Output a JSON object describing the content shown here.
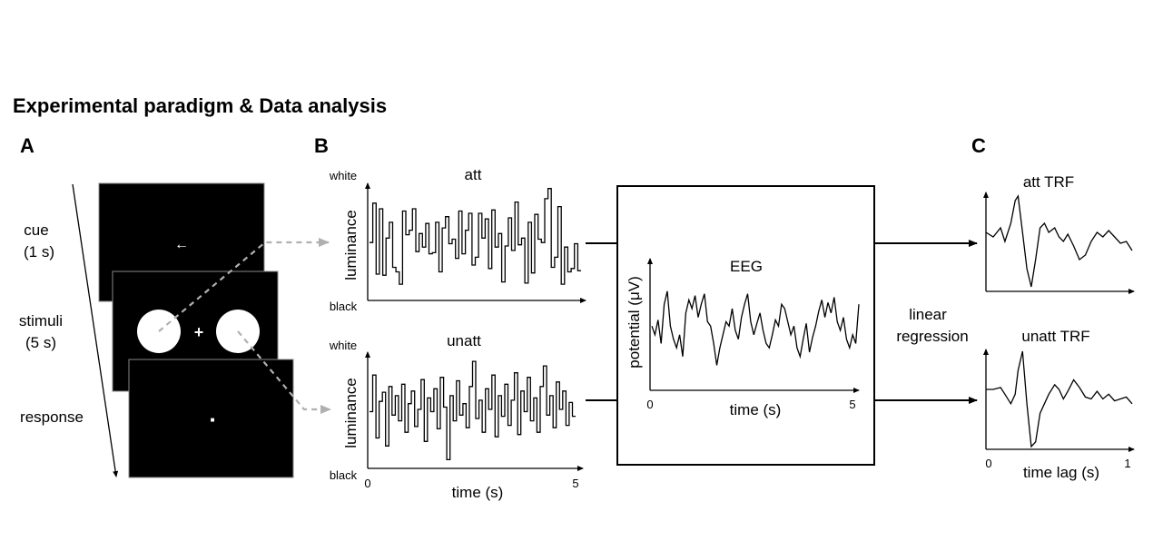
{
  "title": "Experimental paradigm & Data analysis",
  "panel_a": {
    "letter": "A",
    "phase_cue_line1": "cue",
    "phase_cue_line2": "(1 s)",
    "phase_stimuli_line1": "stimuli",
    "phase_stimuli_line2": "(5 s)",
    "phase_response": "response",
    "cue_symbol": "←",
    "fixation_symbol": "+",
    "response_symbol": "■"
  },
  "panel_b": {
    "letter": "B",
    "att_title": "att",
    "unatt_title": "unatt",
    "white_label": "white",
    "black_label": "black",
    "ylabel": "luminance",
    "xlabel": "time (s)",
    "x_start": "0",
    "x_end": "5",
    "eeg_title": "EEG",
    "eeg_ylabel": "potential (μV)",
    "eeg_xlabel": "time (s)",
    "eeg_x_start": "0",
    "eeg_x_end": "5",
    "method_line1": "linear",
    "method_line2": "regression"
  },
  "panel_c": {
    "letter": "C",
    "att_title": "att TRF",
    "unatt_title": "unatt TRF",
    "xlabel": "time lag (s)",
    "x_start": "0",
    "x_end": "1"
  },
  "colors": {
    "screen": "#000000",
    "dashed_arrow": "#b0b0b0",
    "stimulus": "#ffffff"
  },
  "chart_data": [
    {
      "type": "line",
      "title": "att",
      "ylabel": "luminance",
      "xlabel": "",
      "x_range": [
        0,
        5
      ],
      "y_range": [
        "black",
        "white"
      ],
      "series": [
        {
          "values": [
            0.49,
            0.84,
            0.21,
            0.79,
            0.2,
            0.53,
            0.67,
            0.27,
            0.23,
            0.12,
            0.77,
            0.56,
            0.6,
            0.79,
            0.41,
            0.57,
            0.45,
            0.66,
            0.39,
            0.4,
            0.67,
            0.23,
            0.62,
            0.72,
            0.48,
            0.52,
            0.35,
            0.77,
            0.39,
            0.6,
            0.75,
            0.29,
            0.36,
            0.75,
            0.53,
            0.7,
            0.26,
            0.78,
            0.45,
            0.57,
            0.14,
            0.46,
            0.71,
            0.42,
            0.85,
            0.47,
            0.53,
            0.13,
            0.67,
            0.22,
            0.74,
            0.52,
            0.49,
            0.88,
            0.97,
            0.27,
            0.36,
            0.81,
            0.12,
            0.45,
            0.23,
            0.26,
            0.48,
            0.24
          ]
        }
      ]
    },
    {
      "type": "line",
      "title": "unatt",
      "ylabel": "luminance",
      "xlabel": "time (s)",
      "x_range": [
        0,
        5
      ],
      "y_range": [
        "black",
        "white"
      ],
      "series": [
        {
          "values": [
            0.48,
            0.8,
            0.25,
            0.57,
            0.65,
            0.18,
            0.7,
            0.45,
            0.62,
            0.4,
            0.72,
            0.3,
            0.55,
            0.66,
            0.35,
            0.5,
            0.76,
            0.22,
            0.6,
            0.48,
            0.68,
            0.33,
            0.78,
            0.52,
            0.06,
            0.62,
            0.4,
            0.75,
            0.45,
            0.55,
            0.34,
            0.7,
            0.92,
            0.42,
            0.58,
            0.3,
            0.68,
            0.5,
            0.8,
            0.26,
            0.62,
            0.44,
            0.72,
            0.36,
            0.58,
            0.82,
            0.28,
            0.66,
            0.48,
            0.78,
            0.4,
            0.6,
            0.3,
            0.7,
            0.88,
            0.45,
            0.62,
            0.34,
            0.74,
            0.5,
            0.66,
            0.36,
            0.56,
            0.44
          ]
        }
      ]
    },
    {
      "type": "line",
      "title": "EEG",
      "ylabel": "potential (μV)",
      "xlabel": "time (s)",
      "x_range": [
        0,
        5
      ],
      "series": [
        {
          "values": [
            0.55,
            0.45,
            0.62,
            0.35,
            0.8,
            0.95,
            0.55,
            0.4,
            0.3,
            0.45,
            0.2,
            0.7,
            0.85,
            0.75,
            0.9,
            0.65,
            0.8,
            0.92,
            0.6,
            0.55,
            0.35,
            0.1,
            0.3,
            0.45,
            0.6,
            0.55,
            0.75,
            0.5,
            0.4,
            0.65,
            0.8,
            0.92,
            0.6,
            0.45,
            0.58,
            0.7,
            0.5,
            0.35,
            0.3,
            0.45,
            0.62,
            0.55,
            0.8,
            0.75,
            0.6,
            0.45,
            0.55,
            0.3,
            0.2,
            0.4,
            0.58,
            0.25,
            0.42,
            0.55,
            0.72,
            0.85,
            0.65,
            0.82,
            0.7,
            0.88,
            0.6,
            0.5,
            0.65,
            0.4,
            0.3,
            0.45,
            0.35,
            0.8
          ]
        }
      ]
    },
    {
      "type": "line",
      "title": "att TRF",
      "xlabel": "time lag (s)",
      "x_range": [
        0,
        1
      ],
      "series": [
        {
          "x": [
            0,
            0.05,
            0.1,
            0.13,
            0.17,
            0.2,
            0.22,
            0.25,
            0.28,
            0.31,
            0.34,
            0.37,
            0.4,
            0.43,
            0.47,
            0.5,
            0.53,
            0.56,
            0.6,
            0.64,
            0.68,
            0.72,
            0.76,
            0.8,
            0.84,
            0.88,
            0.92,
            0.96,
            1.0
          ],
          "values": [
            0.6,
            0.55,
            0.65,
            0.5,
            0.7,
            0.95,
            1.0,
            0.6,
            0.2,
            0.0,
            0.3,
            0.65,
            0.7,
            0.6,
            0.65,
            0.55,
            0.5,
            0.58,
            0.45,
            0.3,
            0.35,
            0.5,
            0.6,
            0.55,
            0.62,
            0.55,
            0.48,
            0.5,
            0.4
          ]
        }
      ]
    },
    {
      "type": "line",
      "title": "unatt TRF",
      "xlabel": "time lag (s)",
      "x_range": [
        0,
        1
      ],
      "series": [
        {
          "x": [
            0,
            0.05,
            0.1,
            0.13,
            0.17,
            0.2,
            0.22,
            0.25,
            0.28,
            0.31,
            0.34,
            0.37,
            0.4,
            0.43,
            0.47,
            0.5,
            0.53,
            0.56,
            0.6,
            0.64,
            0.68,
            0.72,
            0.76,
            0.8,
            0.84,
            0.88,
            0.92,
            0.96,
            1.0
          ],
          "values": [
            0.6,
            0.6,
            0.62,
            0.55,
            0.45,
            0.55,
            0.8,
            1.0,
            0.45,
            0.0,
            0.05,
            0.35,
            0.45,
            0.55,
            0.65,
            0.6,
            0.5,
            0.58,
            0.7,
            0.62,
            0.52,
            0.5,
            0.58,
            0.5,
            0.55,
            0.48,
            0.5,
            0.52,
            0.45
          ]
        }
      ]
    }
  ]
}
